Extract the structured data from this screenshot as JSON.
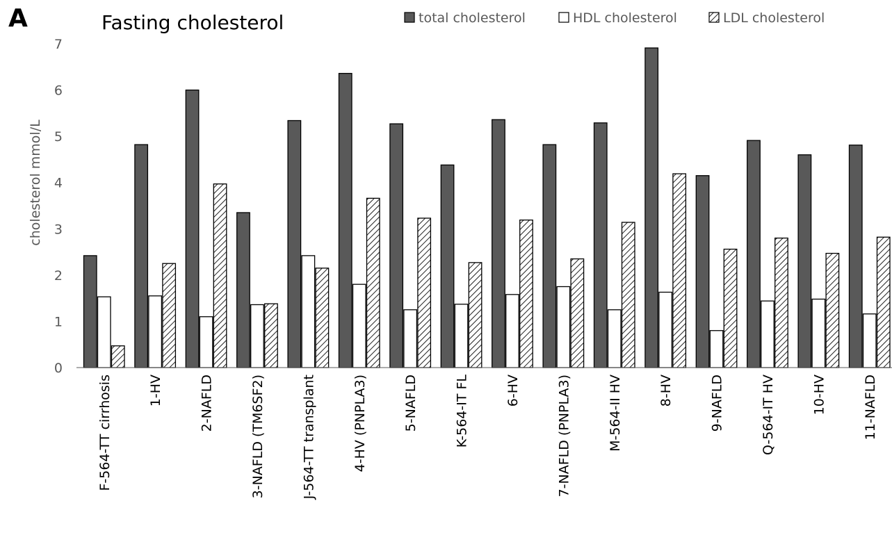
{
  "panel_label": "A",
  "chart_data": {
    "type": "bar",
    "title": "Fasting cholesterol",
    "xlabel": "",
    "ylabel": "cholesterol mmol/L",
    "ylim": [
      0,
      7
    ],
    "yticks": [
      0,
      1,
      2,
      3,
      4,
      5,
      6,
      7
    ],
    "grid": false,
    "legend_position": "top-right",
    "categories": [
      "F-564-TT cirrhosis",
      "1-HV",
      "2-NAFLD",
      "3-NAFLD (TM6SF2)",
      "J-564-TT transplant",
      "4-HV (PNPLA3)",
      "5-NAFLD",
      "K-564-IT FL",
      "6-HV",
      "7-NAFLD (PNPLA3)",
      "M-564-II HV",
      "8-HV",
      "9-NAFLD",
      "Q-564-IT HV",
      "10-HV",
      "11-NAFLD"
    ],
    "series": [
      {
        "name": "total cholesterol",
        "color": "#595959",
        "pattern": "solid",
        "values": [
          2.42,
          4.82,
          6.0,
          3.35,
          5.34,
          6.36,
          5.27,
          4.38,
          5.36,
          4.82,
          5.29,
          6.91,
          4.15,
          4.91,
          4.6,
          4.81
        ]
      },
      {
        "name": "HDL cholesterol",
        "color": "#ffffff",
        "pattern": "white",
        "values": [
          1.53,
          1.55,
          1.1,
          1.36,
          2.42,
          1.8,
          1.25,
          1.37,
          1.58,
          1.75,
          1.25,
          1.63,
          0.8,
          1.44,
          1.48,
          1.16
        ]
      },
      {
        "name": "LDL cholesterol",
        "color": "#ffffff",
        "pattern": "hatched",
        "values": [
          0.47,
          2.25,
          3.97,
          1.38,
          2.15,
          3.66,
          3.23,
          2.27,
          3.19,
          2.35,
          3.14,
          4.19,
          2.56,
          2.8,
          2.47,
          2.82
        ]
      }
    ]
  }
}
